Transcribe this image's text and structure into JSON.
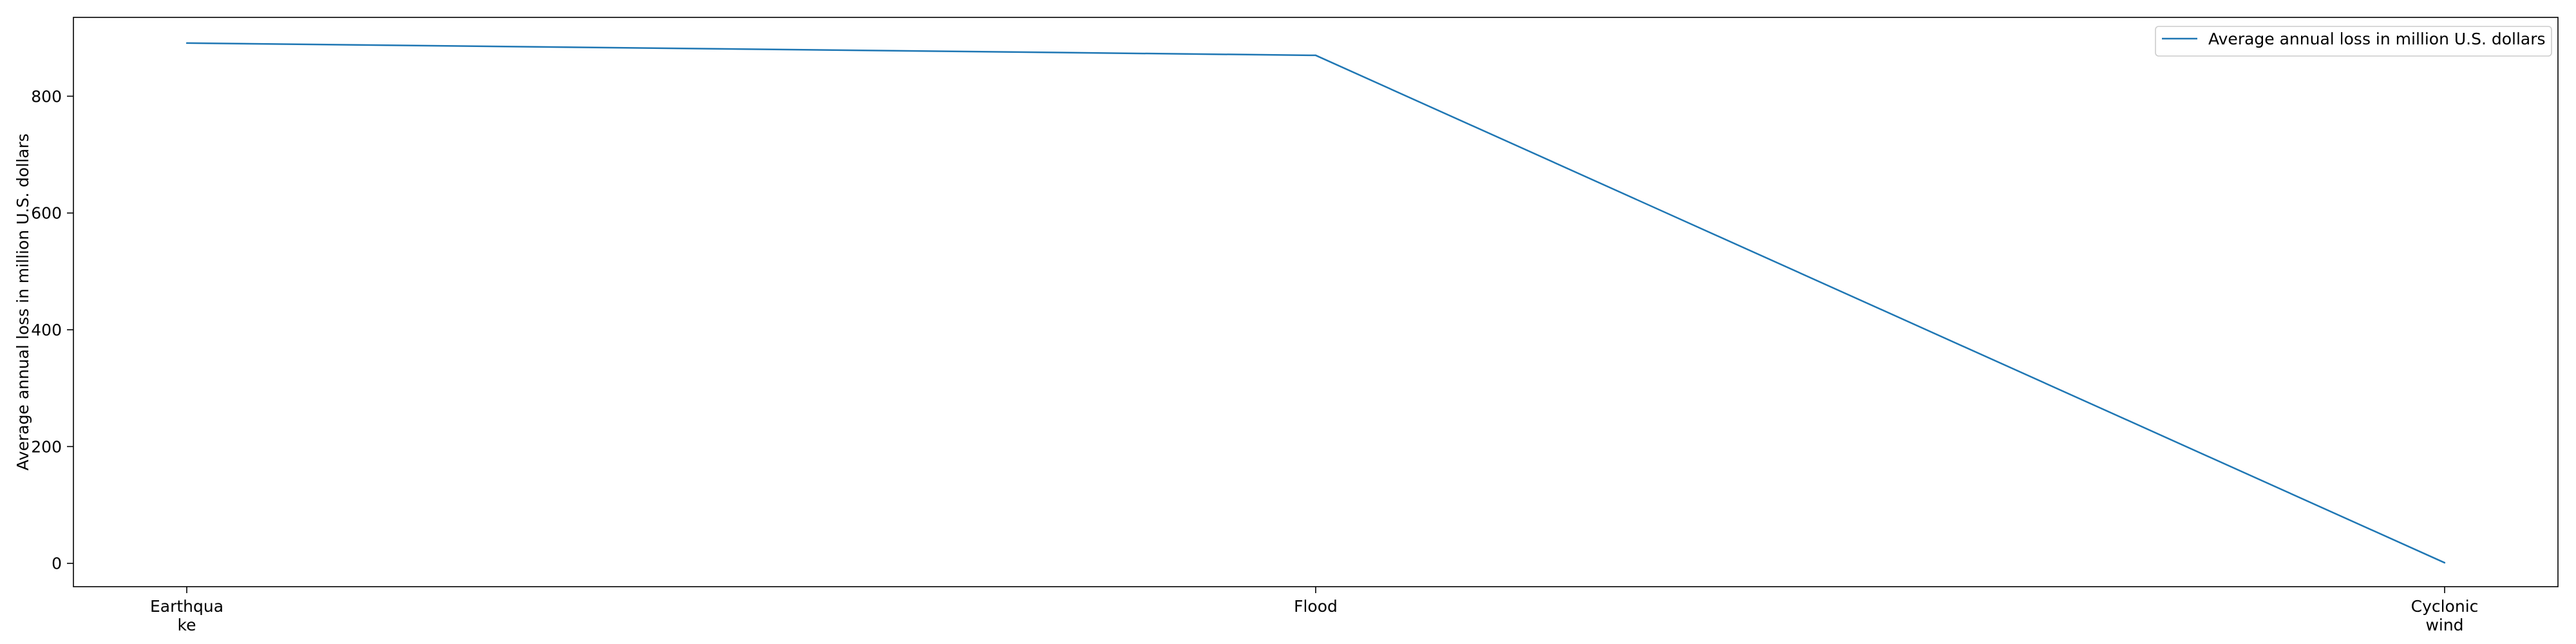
{
  "chart_data": {
    "type": "line",
    "title": "",
    "xlabel": "",
    "ylabel": "Average annual loss in million U.S. dollars",
    "categories": [
      [
        "Earthqua",
        "ke"
      ],
      [
        "Flood"
      ],
      [
        "Cyclonic",
        "wind"
      ]
    ],
    "series": [
      {
        "name": "Average annual loss in million U.S. dollars",
        "values": [
          891,
          870,
          1
        ],
        "color": "#1f77b4"
      }
    ],
    "y_ticks": [
      0,
      200,
      400,
      600,
      800
    ],
    "ylim": [
      -40,
      935
    ],
    "grid": false,
    "legend_position": "top-right"
  }
}
